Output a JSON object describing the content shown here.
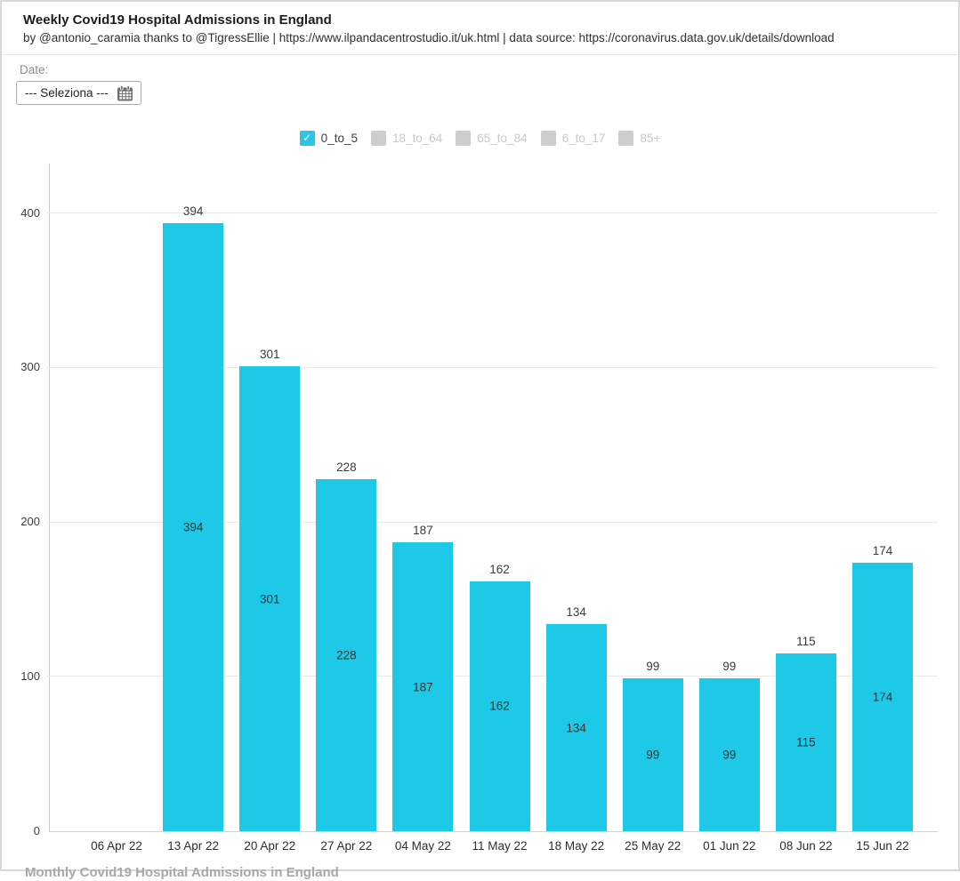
{
  "header": {
    "title": "Weekly Covid19 Hospital Admissions in England",
    "subtitle": "by @antonio_caramia thanks to @TigressEllie | https://www.ilpandacentrostudio.it/uk.html | data source: https://coronavirus.data.gov.uk/details/download"
  },
  "controls": {
    "date_label": "Date:",
    "date_select_value": "--- Seleziona ---"
  },
  "legend": {
    "position": "top-center",
    "items": [
      {
        "label": "0_to_5",
        "checked": true
      },
      {
        "label": "18_to_64",
        "checked": false
      },
      {
        "label": "65_to_84",
        "checked": false
      },
      {
        "label": "6_to_17",
        "checked": false
      },
      {
        "label": "85+",
        "checked": false
      }
    ]
  },
  "colors": {
    "bar": "#1ec9e8",
    "legend_checked": "#29c4e6",
    "legend_unchecked_box": "#cdcdcd",
    "grid": "#e9e9e9",
    "axis": "#c9c9c9"
  },
  "chart_data": {
    "type": "bar",
    "title": "Weekly Covid19 Hospital Admissions in England",
    "series": [
      {
        "name": "0_to_5",
        "values": [
          0,
          394,
          301,
          228,
          187,
          162,
          134,
          99,
          99,
          115,
          174
        ]
      }
    ],
    "categories": [
      "06 Apr 22",
      "13 Apr 22",
      "20 Apr 22",
      "27 Apr 22",
      "04 May 22",
      "11 May 22",
      "18 May 22",
      "25 May 22",
      "01 Jun 22",
      "08 Jun 22",
      "15 Jun 22"
    ],
    "yticks": [
      0,
      100,
      200,
      300,
      400
    ],
    "ylim": [
      0,
      433
    ],
    "xlabel": "",
    "ylabel": "",
    "grid": true,
    "bar_value_labels": "above bar top and centered inside bar"
  },
  "footer": {
    "partial_next_title": "Monthly Covid19 Hospital Admissions in England"
  }
}
